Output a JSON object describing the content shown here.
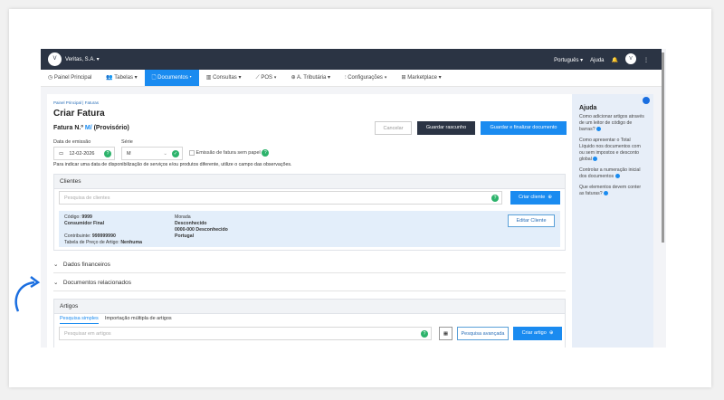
{
  "header": {
    "company": "Veritas, S.A.",
    "language": "Português",
    "help": "Ajuda"
  },
  "nav": [
    "Painel Principal",
    "Tabelas",
    "Documentos",
    "Consultas",
    "POS",
    "A. Tributária",
    "Configurações",
    "Marketplace"
  ],
  "breadcrumb": [
    "Painel Principal",
    "Faturas"
  ],
  "page_title": "Criar Fatura",
  "doc": {
    "label": "Fatura N.º",
    "series": "M/",
    "status": "(Provisório)"
  },
  "buttons": {
    "cancel": "Cancelar",
    "draft": "Guardar rascunho",
    "finalize": "Guardar e finalizar documento",
    "create_client": "Criar cliente",
    "edit_client": "Editar Cliente",
    "advanced": "Pesquisa avançada",
    "create_article": "Criar artigo"
  },
  "form": {
    "date_label": "Data de emissão",
    "date_value": "12-02-2026",
    "series_label": "Série",
    "series_value": "M",
    "paperless": "Emissão de fatura sem papel",
    "hint": "Para indicar uma data de disponibilização de serviços e/ou produtos diferente, utilize o campo das observações."
  },
  "clients": {
    "title": "Clientes",
    "search_placeholder": "Pesquisa de clientes",
    "code_label": "Código:",
    "code": "9999",
    "name": "Consumidor Final",
    "taxid_label": "Contribuinte:",
    "taxid": "999999990",
    "pricetable_label": "Tabela de Preço de Artigo:",
    "pricetable": "Nenhuma",
    "address_label": "Morada",
    "address1": "Desconhecido",
    "address2": "0000-000 Desconhecido",
    "country": "Portugal"
  },
  "sections": {
    "financial": "Dados financeiros",
    "related": "Documentos relacionados"
  },
  "articles": {
    "title": "Artigos",
    "tab_simple": "Pesquisa simples",
    "tab_import": "Importação múltipla de artigos",
    "search_placeholder": "Pesquisar em artigos"
  },
  "help": {
    "title": "Ajuda",
    "items": [
      "Como adicionar artigos através de um leitor de código de barras?",
      "Como apresentar o Total Líquido nos documentos com ou sem impostos e desconto global",
      "Controlar a numeração inicial dos documentos",
      "Que elementos devem conter as faturas?"
    ]
  },
  "colors": {
    "accent": "#1a8bf0",
    "header": "#2b3444",
    "success": "#2cb36b"
  }
}
